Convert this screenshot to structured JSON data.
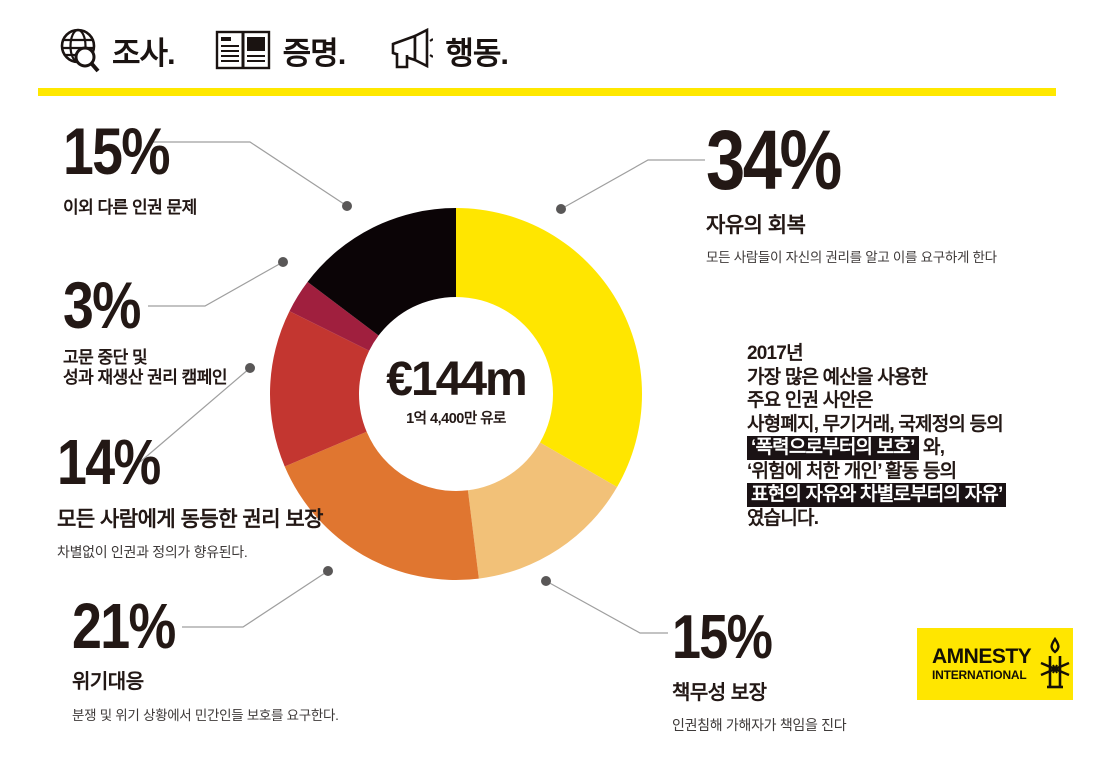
{
  "brand": {
    "accent_yellow": "#FFE800",
    "logo_yellow": "#FFE600",
    "ink": "#231815"
  },
  "header": {
    "items": [
      {
        "icon": "globe-magnifier-icon",
        "label": "조사."
      },
      {
        "icon": "open-book-icon",
        "label": "증명."
      },
      {
        "icon": "megaphone-icon",
        "label": "행동."
      }
    ]
  },
  "chart_data": {
    "type": "pie",
    "subtype": "donut",
    "center_label": "€144m",
    "center_sublabel": "1억 4,400만 유로",
    "legend_position": "callouts-around-donut",
    "dot_color": "#595757",
    "leader_line_color": "#9f9f9f",
    "segments": [
      {
        "pct": 34,
        "pct_label": "34%",
        "label": "자유의 회복",
        "sublabel": "모든 사람들이 자신의 권리를 알고 이를 요구하게 한다",
        "color": "#FFE600"
      },
      {
        "pct": 15,
        "pct_label": "15%",
        "label": "책무성 보장",
        "sublabel": "인권침해 가해자가 책임을 진다",
        "color": "#F2C178"
      },
      {
        "pct": 21,
        "pct_label": "21%",
        "label": "위기대응",
        "sublabel": "분쟁 및 위기 상황에서 민간인들 보호를 요구한다.",
        "color": "#E07630"
      },
      {
        "pct": 14,
        "pct_label": "14%",
        "label": "모든 사람에게 동등한 권리 보장",
        "sublabel": "차별없이 인권과 정의가 향유된다.",
        "color": "#C33630"
      },
      {
        "pct": 3,
        "pct_label": "3%",
        "label": "고문 중단 및",
        "label2": "성과 재생산 권리 캠페인",
        "color": "#A01F3E"
      },
      {
        "pct": 15,
        "pct_label": "15%",
        "label": "이외 다른 인권 문제",
        "color": "#0B0406"
      }
    ]
  },
  "summary": {
    "l1": "2017년",
    "l2": "가장 많은 예산을 사용한",
    "l3": "주요 인권 사안은",
    "l4": "사형폐지, 무기거래, 국제정의 등의",
    "l5_hl": "‘폭력으로부터의 보호’",
    "l5_rest": " 와,",
    "l6": "‘위험에 처한 개인’ 활동 등의",
    "l7_hl": " 표현의 자유와 차별로부터의 자유’",
    "l8": "였습니다."
  },
  "logo": {
    "line1": "AMNESTY",
    "line2": "INTERNATIONAL",
    "icon": "candle-barbed-wire-icon"
  }
}
